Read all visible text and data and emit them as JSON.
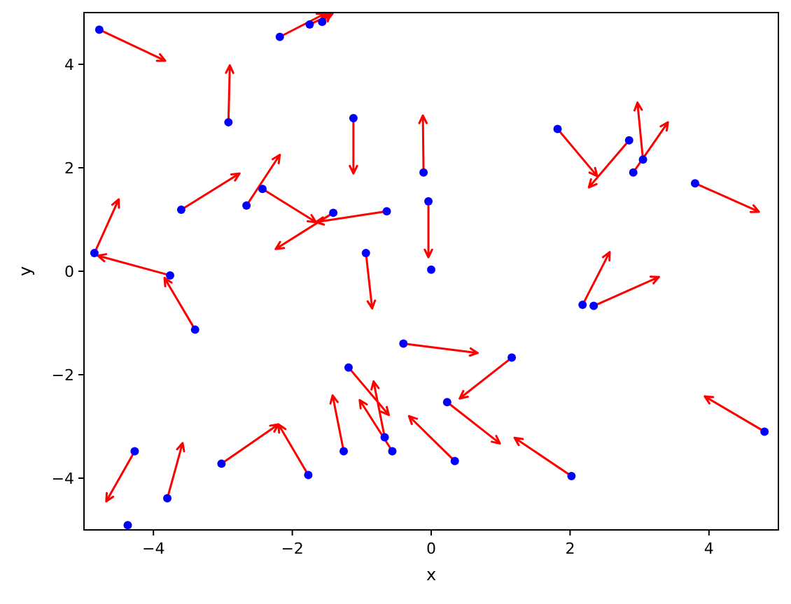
{
  "chart_data": {
    "type": "scatter",
    "xlabel": "x",
    "ylabel": "y",
    "xlim": [
      -5,
      5
    ],
    "ylim": [
      -5,
      5
    ],
    "xticks": [
      {
        "value": -4,
        "label": "−4"
      },
      {
        "value": -2,
        "label": "−2"
      },
      0,
      2,
      4
    ],
    "yticks": [
      {
        "value": -4,
        "label": "−4"
      },
      {
        "value": -2,
        "label": "−2"
      },
      0,
      2,
      4
    ],
    "grid": false,
    "series": [
      {
        "type": "line",
        "color": "#ff0000",
        "marker": "none",
        "x": [
          -4.78,
          -3.83,
          null,
          -2.18,
          -1.53,
          null,
          -1.75,
          -1.42,
          null,
          -1.57,
          -1.45,
          null,
          -2.92,
          -2.9,
          null,
          -1.12,
          -1.12,
          null,
          -0.11,
          -0.12,
          null,
          -0.04,
          -0.04,
          null,
          1.82,
          2.39,
          null,
          2.85,
          2.27,
          null,
          3.05,
          2.97,
          null,
          2.91,
          3.41,
          null,
          3.8,
          4.72,
          null,
          -3.6,
          -2.76,
          null,
          -2.66,
          -2.18,
          null,
          -2.43,
          -1.66,
          null,
          -1.41,
          -2.24,
          null,
          -0.64,
          -1.66,
          null,
          -4.85,
          -4.5,
          null,
          -3.76,
          -4.8,
          null,
          -3.4,
          -3.84,
          null,
          -0.94,
          -0.85,
          null,
          -0.4,
          0.67,
          null,
          -1.19,
          -0.61,
          null,
          -0.67,
          -0.83,
          null,
          -0.56,
          -1.03,
          null,
          -1.26,
          -1.42,
          null,
          -1.77,
          -2.2,
          null,
          -3.02,
          -2.2,
          null,
          -4.27,
          -4.68,
          null,
          -3.8,
          -3.58,
          null,
          2.02,
          1.2,
          null,
          0.34,
          -0.32,
          null,
          0.23,
          0.99,
          null,
          1.16,
          0.41,
          null,
          2.18,
          2.57,
          null,
          2.34,
          3.28,
          null,
          4.8,
          3.94
        ],
        "values": [
          4.67,
          4.07,
          null,
          4.53,
          4.98,
          null,
          4.77,
          4.98,
          null,
          4.82,
          4.98,
          null,
          2.88,
          3.98,
          null,
          2.96,
          1.89,
          null,
          1.91,
          3.01,
          null,
          1.35,
          0.27,
          null,
          2.75,
          1.84,
          null,
          2.53,
          1.62,
          null,
          2.16,
          3.26,
          null,
          1.91,
          2.88,
          null,
          1.7,
          1.15,
          null,
          1.19,
          1.89,
          null,
          1.27,
          2.25,
          null,
          1.59,
          0.95,
          null,
          1.13,
          0.43,
          null,
          1.16,
          0.95,
          null,
          0.35,
          1.39,
          null,
          -0.08,
          0.3,
          null,
          -1.13,
          -0.13,
          null,
          0.35,
          -0.72,
          null,
          -1.4,
          -1.58,
          null,
          -1.86,
          -2.78,
          null,
          -3.21,
          -2.13,
          null,
          -3.48,
          -2.49,
          null,
          -3.48,
          -2.4,
          null,
          -3.94,
          -2.96,
          null,
          -3.72,
          -2.96,
          null,
          -3.48,
          -4.45,
          null,
          -4.39,
          -3.32,
          null,
          -3.96,
          -3.22,
          null,
          -3.67,
          -2.8,
          null,
          -2.53,
          -3.33,
          null,
          -1.67,
          -2.46,
          null,
          -0.65,
          0.37,
          null,
          -0.67,
          -0.11,
          null,
          -3.1,
          -2.42
        ]
      },
      {
        "type": "scatter",
        "color": "#0000ff",
        "marker": "circle",
        "x": [
          -4.78,
          -2.18,
          -1.75,
          -1.57,
          -2.92,
          -1.12,
          -0.11,
          -0.04,
          0.0,
          1.82,
          2.85,
          3.05,
          2.91,
          3.8,
          -3.6,
          -2.66,
          -2.43,
          -1.41,
          -0.64,
          -4.85,
          -3.76,
          -3.4,
          -0.94,
          -0.4,
          -1.19,
          -0.67,
          -0.56,
          -1.26,
          -1.77,
          -3.02,
          -4.27,
          -3.8,
          -4.37,
          2.02,
          0.34,
          0.23,
          1.16,
          2.18,
          2.34,
          4.8
        ],
        "values": [
          4.67,
          4.53,
          4.77,
          4.82,
          2.88,
          2.96,
          1.91,
          1.35,
          0.03,
          2.75,
          2.53,
          2.16,
          1.91,
          1.7,
          1.19,
          1.27,
          1.59,
          1.13,
          1.16,
          0.35,
          -0.08,
          -1.13,
          0.35,
          -1.4,
          -1.86,
          -3.21,
          -3.48,
          -3.48,
          -3.94,
          -3.72,
          -3.48,
          -4.39,
          -4.91,
          -3.96,
          -3.67,
          -2.53,
          -1.67,
          -0.65,
          -0.67,
          -3.1
        ]
      }
    ]
  }
}
